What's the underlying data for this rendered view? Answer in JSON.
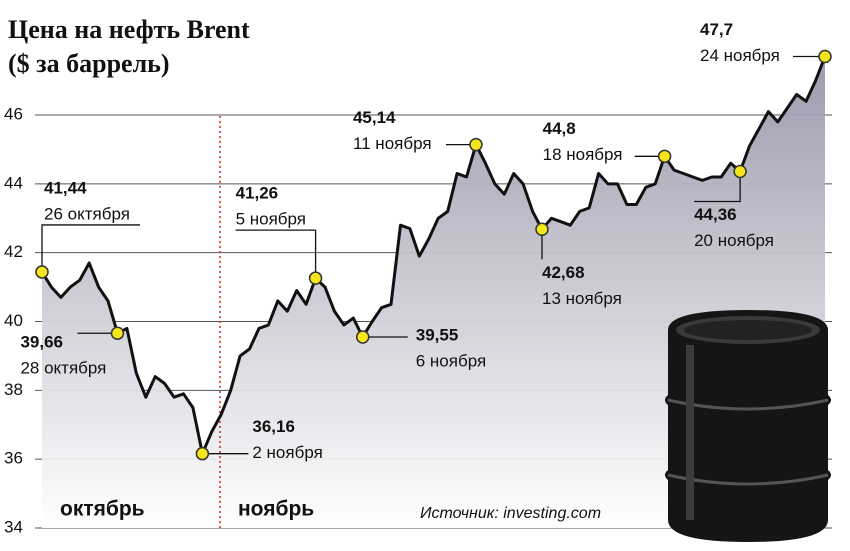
{
  "chart_data": {
    "type": "line",
    "title": "Цена на нефть Brent",
    "subtitle": "($ за баррель)",
    "source": "Источник: investing.com",
    "month_labels": [
      "октябрь",
      "ноябрь"
    ],
    "ylim": [
      34,
      48
    ],
    "yticks": [
      34,
      36,
      38,
      40,
      42,
      44,
      46
    ],
    "grid": true,
    "color": "#111111",
    "area_color": "#a6a5b6",
    "marker_color": "#f5e51b",
    "categories": [
      null,
      null,
      null,
      null,
      null,
      null,
      null,
      null,
      null,
      null,
      null,
      null,
      null,
      null,
      null,
      null,
      null,
      null,
      null,
      null,
      null,
      null,
      null,
      null,
      null,
      null,
      null,
      null,
      null,
      null,
      null,
      null,
      null,
      null,
      null,
      null,
      null,
      null,
      null,
      null,
      null,
      null,
      null,
      null,
      null,
      null,
      null,
      null,
      null,
      null,
      null,
      null,
      null,
      null,
      null,
      null,
      null,
      null,
      null,
      null,
      null,
      null,
      null,
      null,
      null,
      null,
      null,
      null,
      null,
      null,
      null,
      null,
      null,
      null,
      null,
      null,
      null,
      null,
      null,
      null,
      null,
      null,
      null,
      null
    ],
    "values": [
      41.44,
      41.0,
      40.7,
      41.0,
      41.2,
      41.7,
      41.0,
      40.6,
      39.66,
      39.8,
      38.5,
      37.8,
      38.4,
      38.2,
      37.8,
      37.9,
      37.5,
      36.16,
      36.8,
      37.3,
      38.0,
      39.0,
      39.2,
      39.8,
      39.9,
      40.6,
      40.3,
      40.9,
      40.5,
      41.26,
      41.0,
      40.3,
      39.9,
      40.1,
      39.55,
      40.0,
      40.4,
      40.5,
      42.8,
      42.7,
      41.9,
      42.4,
      43.0,
      43.2,
      44.3,
      44.2,
      45.14,
      44.6,
      44.0,
      43.7,
      44.3,
      44.0,
      43.2,
      42.68,
      43.0,
      42.9,
      42.8,
      43.2,
      43.3,
      44.3,
      44.0,
      44.0,
      43.4,
      43.4,
      43.9,
      44.0,
      44.8,
      44.4,
      44.3,
      44.2,
      44.1,
      44.2,
      44.2,
      44.6,
      44.36,
      45.1,
      45.6,
      46.1,
      45.8,
      46.2,
      46.6,
      46.4,
      47.0,
      47.7
    ],
    "value_labels": [
      "41,44",
      null,
      null,
      null,
      null,
      null,
      null,
      null,
      "39,66",
      null,
      null,
      null,
      null,
      null,
      null,
      null,
      null,
      "36,16",
      null,
      null,
      null,
      null,
      null,
      null,
      null,
      null,
      null,
      null,
      null,
      "41,26",
      null,
      null,
      null,
      null,
      "39,55",
      null,
      null,
      null,
      null,
      null,
      null,
      null,
      null,
      null,
      null,
      null,
      "45,14",
      null,
      null,
      null,
      null,
      null,
      null,
      "42,68",
      null,
      null,
      null,
      null,
      null,
      null,
      null,
      null,
      null,
      null,
      null,
      null,
      "44,8",
      null,
      null,
      null,
      null,
      null,
      null,
      null,
      "44,36",
      null,
      null,
      null,
      null,
      null,
      null,
      null,
      null,
      "47,7"
    ],
    "point_dates": [
      "26 октября",
      null,
      null,
      null,
      null,
      null,
      null,
      null,
      "28 октября",
      null,
      null,
      null,
      null,
      null,
      null,
      null,
      null,
      "2 ноября",
      null,
      null,
      null,
      null,
      null,
      null,
      null,
      null,
      null,
      null,
      null,
      "5 ноября",
      null,
      null,
      null,
      null,
      "6 ноября",
      null,
      null,
      null,
      null,
      null,
      null,
      null,
      null,
      null,
      null,
      null,
      "11 ноября",
      null,
      null,
      null,
      null,
      null,
      null,
      "13 ноября",
      null,
      null,
      null,
      null,
      null,
      null,
      null,
      null,
      null,
      null,
      null,
      null,
      "18 ноября",
      null,
      null,
      null,
      null,
      null,
      null,
      null,
      "20 ноября",
      null,
      null,
      null,
      null,
      null,
      null,
      null,
      null,
      "24 ноября"
    ]
  }
}
